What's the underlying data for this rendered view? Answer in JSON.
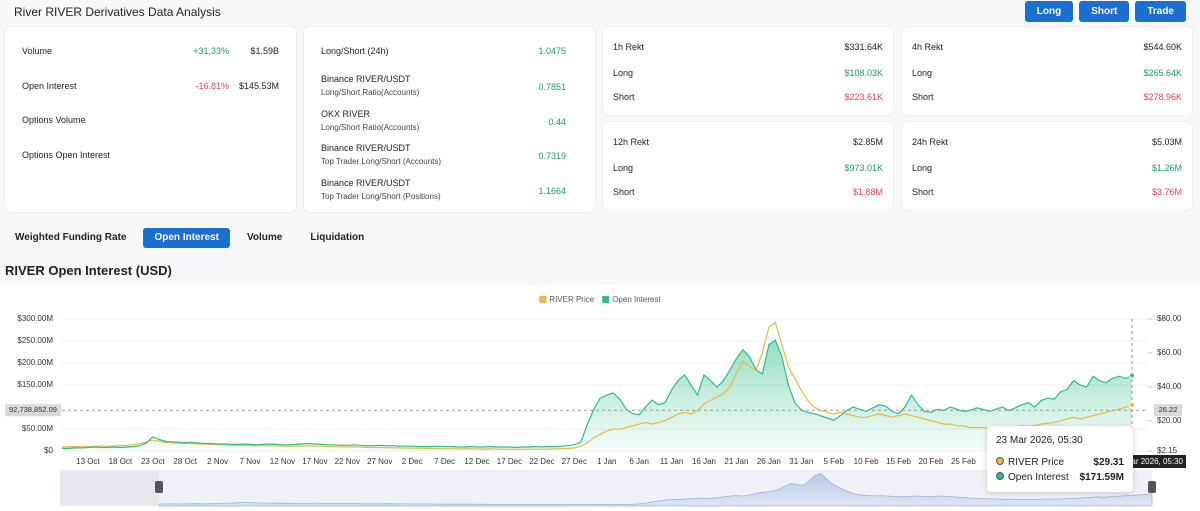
{
  "header": {
    "title": "River RIVER Derivatives Data Analysis",
    "buttons": [
      "Long",
      "Short",
      "Trade"
    ]
  },
  "overview": {
    "rows": [
      {
        "label": "Volume",
        "change": "+31.33%",
        "value": "$1.59B"
      },
      {
        "label": "Open Interest",
        "change": "-16.81%",
        "value": "$145.53M"
      },
      {
        "label": "Options Volume"
      },
      {
        "label": "Options Open Interest"
      }
    ]
  },
  "ratios": [
    {
      "label": "Long/Short (24h)",
      "value": 1.0475
    },
    {
      "label": "Binance RIVER/USDT",
      "metric": "Long/Short Ratio(Accounts)",
      "value": 0.7851
    },
    {
      "label": "OKX RIVER",
      "metric": "Long/Short Ratio(Accounts)",
      "value": 0.44
    },
    {
      "label": "Binance RIVER/USDT",
      "metric": "Top Trader Long/Short (Accounts)",
      "value": 0.7319
    },
    {
      "label": "Binance RIVER/USDT",
      "metric": "Top Trader Long/Short (Positions)",
      "value": 1.1664
    }
  ],
  "rekt_cards": [
    {
      "title": "1h Rekt",
      "total": "$331.64K",
      "rows": [
        {
          "label": "Long",
          "value": "$108.03K"
        },
        {
          "label": "Short",
          "value": "$223.61K"
        }
      ]
    },
    {
      "title": "4h Rekt",
      "total": "$544.60K",
      "rows": [
        {
          "label": "Long",
          "value": "$265.64K"
        },
        {
          "label": "Short",
          "value": "$278.96K"
        }
      ]
    },
    {
      "title": "12h Rekt",
      "total": "$2.85M",
      "rows": [
        {
          "label": "Long",
          "value": "$973.01K"
        },
        {
          "label": "Short",
          "value": "$1.88M"
        }
      ]
    },
    {
      "title": "24h Rekt",
      "total": "$5.03M",
      "rows": [
        {
          "label": "Long",
          "value": "$1.26M"
        },
        {
          "label": "Short",
          "value": "$3.76M"
        }
      ]
    }
  ],
  "tabs": [
    "Weighted Funding Rate",
    "Open Interest",
    "Volume",
    "Liquidation"
  ],
  "active_tab": 1,
  "chart_data": {
    "type": "line",
    "title": "RIVER Open Interest (USD)",
    "legend": "top",
    "grid": true,
    "navigator": true,
    "categories": [
      null,
      null,
      null,
      null,
      "13 Oct",
      null,
      null,
      null,
      null,
      "18 Oct",
      null,
      null,
      null,
      null,
      "23 Oct",
      null,
      null,
      null,
      null,
      "28 Oct",
      null,
      null,
      null,
      null,
      "2 Nov",
      null,
      null,
      null,
      null,
      "7 Nov",
      null,
      null,
      null,
      null,
      "12 Nov",
      null,
      null,
      null,
      null,
      "17 Nov",
      null,
      null,
      null,
      null,
      "22 Nov",
      null,
      null,
      null,
      null,
      "27 Nov",
      null,
      null,
      null,
      null,
      "2 Dec",
      null,
      null,
      null,
      null,
      "7 Dec",
      null,
      null,
      null,
      null,
      "12 Dec",
      null,
      null,
      null,
      null,
      "17 Dec",
      null,
      null,
      null,
      null,
      "22 Dec",
      null,
      null,
      null,
      null,
      "27 Dec",
      null,
      null,
      null,
      null,
      "1 Jan",
      null,
      null,
      null,
      null,
      "6 Jan",
      null,
      null,
      null,
      null,
      "11 Jan",
      null,
      null,
      null,
      null,
      "16 Jan",
      null,
      null,
      null,
      null,
      "21 Jan",
      null,
      null,
      null,
      null,
      "26 Jan",
      null,
      null,
      null,
      null,
      "31 Jan",
      null,
      null,
      null,
      null,
      "5 Feb",
      null,
      null,
      null,
      null,
      "10 Feb",
      null,
      null,
      null,
      null,
      "15 Feb",
      null,
      null,
      null,
      null,
      "20 Feb",
      null,
      null,
      null,
      null,
      "25 Feb",
      null,
      null,
      null,
      null,
      null,
      null,
      null,
      null,
      null,
      null,
      null,
      null,
      null,
      null,
      null,
      null,
      null,
      null,
      null,
      null,
      null,
      null,
      null,
      null,
      null,
      null
    ],
    "series": [
      {
        "name": "RIVER Price",
        "color": "#e8b84a",
        "axis": "y2",
        "area": false,
        "values": [
          4.5,
          4.6,
          4.8,
          4.7,
          4.9,
          5,
          5.2,
          5,
          5.1,
          5.3,
          5.5,
          5.8,
          6.5,
          7.5,
          8.5,
          7.8,
          7.2,
          7,
          6.8,
          6.6,
          6.5,
          6.3,
          6.2,
          6,
          5.9,
          5.8,
          5.6,
          5.5,
          5.6,
          5.4,
          5.3,
          5.2,
          5.3,
          5.2,
          5,
          4.9,
          5,
          5.1,
          5.2,
          5,
          4.9,
          4.8,
          4.7,
          4.6,
          4.5,
          4.6,
          4.4,
          4.3,
          4.2,
          4.3,
          4.1,
          4,
          4,
          3.9,
          3.8,
          3.8,
          3.7,
          3.6,
          3.7,
          3.5,
          3.5,
          3.4,
          3.4,
          3.5,
          3.3,
          3.3,
          3.4,
          3.3,
          3.2,
          3.2,
          3.1,
          3.2,
          3.2,
          3.3,
          3.2,
          3.3,
          3.4,
          3.5,
          3.6,
          4,
          5,
          7,
          10,
          12,
          14,
          15,
          15,
          16,
          17,
          18,
          19,
          18,
          19,
          20,
          22,
          24,
          25,
          24,
          26,
          30,
          32,
          34,
          36,
          40,
          48,
          55,
          52,
          50,
          60,
          75,
          78,
          65,
          52,
          45,
          38,
          32,
          28,
          26,
          25,
          24,
          25,
          24,
          23,
          22,
          22,
          23,
          24,
          23,
          22,
          23,
          24,
          23,
          22,
          21,
          20,
          19,
          18,
          18,
          17,
          17,
          16,
          16,
          16,
          15.5,
          15,
          15.5,
          16,
          16.5,
          17,
          16.5,
          17,
          18,
          18.5,
          19,
          20,
          21,
          22,
          21,
          22,
          23,
          24,
          25,
          26,
          27,
          28,
          29.31
        ]
      },
      {
        "name": "Open Interest",
        "color": "#2ebd85",
        "axis": "y",
        "area": true,
        "values": [
          6,
          6,
          7,
          7,
          8,
          9,
          8,
          8,
          9,
          8,
          9,
          10,
          12,
          18,
          32,
          26,
          22,
          21,
          20,
          19,
          20,
          18,
          17,
          17,
          16,
          16,
          15,
          15,
          16,
          15,
          14,
          15,
          16,
          15,
          14,
          14,
          15,
          16,
          17,
          16,
          15,
          14,
          14,
          13,
          13,
          14,
          13,
          12,
          12,
          13,
          12,
          12,
          11,
          11,
          11,
          10,
          10,
          10,
          11,
          10,
          10,
          9,
          9,
          10,
          9,
          9,
          10,
          9,
          9,
          9,
          8,
          9,
          9,
          10,
          9,
          10,
          10,
          11,
          12,
          14,
          20,
          60,
          95,
          120,
          127,
          132,
          118,
          95,
          85,
          82,
          100,
          116,
          105,
          110,
          139,
          160,
          173,
          150,
          127,
          173,
          160,
          145,
          160,
          184,
          210,
          230,
          215,
          185,
          175,
          241,
          252,
          215,
          150,
          110,
          93,
          88,
          85,
          80,
          75,
          70,
          80,
          92,
          100,
          95,
          90,
          98,
          105,
          102,
          90,
          85,
          100,
          127,
          105,
          90,
          88,
          95,
          92,
          100,
          95,
          90,
          92,
          98,
          95,
          90,
          95,
          100,
          92,
          98,
          105,
          110,
          100,
          115,
          120,
          118,
          135,
          140,
          160,
          150,
          145,
          170,
          160,
          155,
          165,
          170,
          165,
          171.59
        ]
      }
    ],
    "ylim": [
      0,
      300
    ],
    "yticks": [
      {
        "value": 0,
        "label": "$0"
      },
      {
        "value": 50,
        "label": "$50.00M"
      },
      {
        "value": 150,
        "label": "$150.00M"
      },
      {
        "value": 200,
        "label": "$200.00M"
      },
      {
        "value": 250,
        "label": "$250.00M"
      },
      {
        "value": 300,
        "label": "$300.00M"
      }
    ],
    "y2lim": [
      2.15,
      80
    ],
    "y2ticks": [
      {
        "value": 2.15,
        "label": "$2.15"
      },
      {
        "value": 20,
        "label": "$20.00"
      },
      {
        "value": 40,
        "label": "$40.00"
      },
      {
        "value": 60,
        "label": "$60.00"
      },
      {
        "value": 80,
        "label": "$80.00"
      }
    ],
    "crosshair": {
      "y": {
        "value": 92.73885209,
        "label": "92,738,852.09"
      },
      "y2": 26.22
    },
    "tooltip": {
      "date": "23 Mar 2026, 05:30",
      "labels": [
        "$29.31",
        "$171.59M"
      ]
    }
  }
}
